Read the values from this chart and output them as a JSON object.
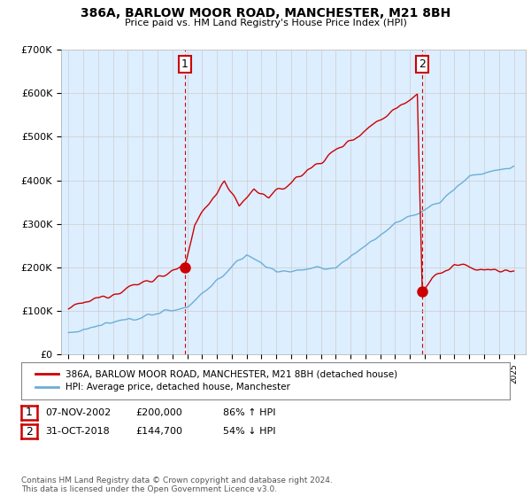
{
  "title": "386A, BARLOW MOOR ROAD, MANCHESTER, M21 8BH",
  "subtitle": "Price paid vs. HM Land Registry's House Price Index (HPI)",
  "ylim": [
    0,
    700000
  ],
  "yticks": [
    0,
    100000,
    200000,
    300000,
    400000,
    500000,
    600000,
    700000
  ],
  "ytick_labels": [
    "£0",
    "£100K",
    "£200K",
    "£300K",
    "£400K",
    "£500K",
    "£600K",
    "£700K"
  ],
  "sale1_x": 2002.85,
  "sale1_price": 200000,
  "sale2_x": 2018.83,
  "sale2_price": 144700,
  "hpi_color": "#6baed6",
  "price_color": "#cc0000",
  "vline_color": "#cc0000",
  "plot_bg": "#ddeeff",
  "legend_label_price": "386A, BARLOW MOOR ROAD, MANCHESTER, M21 8BH (detached house)",
  "legend_label_hpi": "HPI: Average price, detached house, Manchester",
  "table_row1": [
    "1",
    "07-NOV-2002",
    "£200,000",
    "86% ↑ HPI"
  ],
  "table_row2": [
    "2",
    "31-OCT-2018",
    "£144,700",
    "54% ↓ HPI"
  ],
  "footer": "Contains HM Land Registry data © Crown copyright and database right 2024.\nThis data is licensed under the Open Government Licence v3.0.",
  "bg_color": "#ffffff",
  "grid_color": "#cccccc",
  "xlim_left": 1994.5,
  "xlim_right": 2025.8
}
